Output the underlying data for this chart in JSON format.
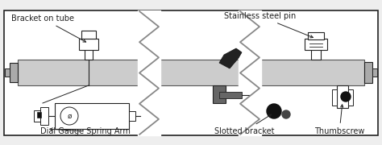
{
  "bg_color": "#eeeeee",
  "box_bg": "#ffffff",
  "border_color": "#222222",
  "tube_color": "#cccccc",
  "tube_dark": "#aaaaaa",
  "dark_gray": "#666666",
  "black": "#111111",
  "labels": {
    "bracket_on_tube": "Bracket on tube",
    "dial_gauge": "Dial Gauge Spring Arm",
    "stainless_pin": "Stainless steel pin",
    "slotted_bracket": "Slotted bracket",
    "thumbscrew": "Thumbscrew"
  },
  "font_size": 7.0
}
